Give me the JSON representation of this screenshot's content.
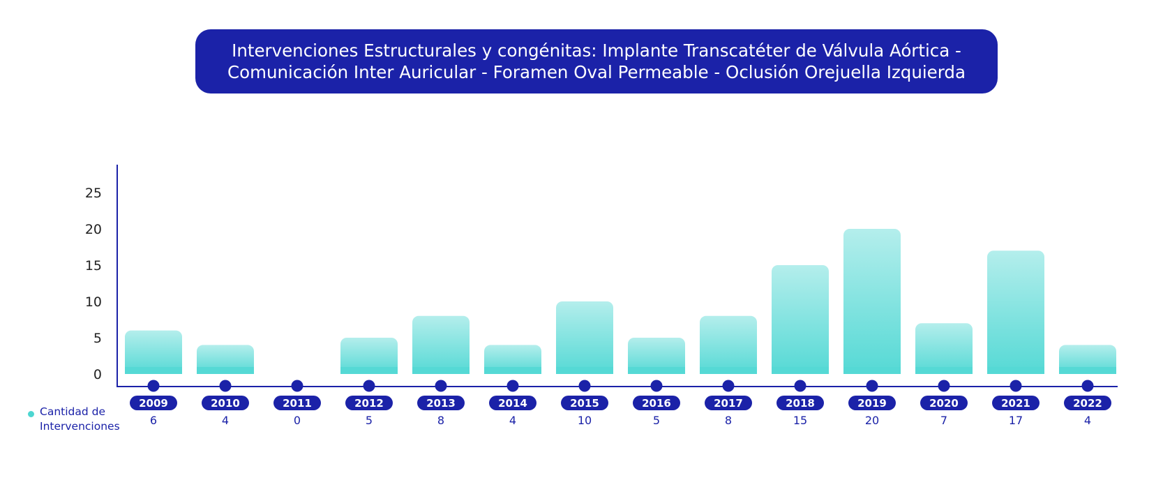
{
  "title": "Intervenciones Estructurales y congénitas: Implante Transcatéter de Válvula Aórtica - Comunicación Inter Auricular - Foramen Oval Permeable - Oclusión Orejuella Izquierda",
  "colors": {
    "accent": "#1b22a8",
    "bar_top": "#b4eeec",
    "bar_bottom": "#55d9d5",
    "legend_dot": "#4dd6d1",
    "tick_text": "#222222"
  },
  "legend": {
    "label": "Cantidad de Intervenciones"
  },
  "chart_data": {
    "type": "bar",
    "categories": [
      "2009",
      "2010",
      "2011",
      "2012",
      "2013",
      "2014",
      "2015",
      "2016",
      "2017",
      "2018",
      "2019",
      "2020",
      "2021",
      "2022"
    ],
    "series": [
      {
        "name": "Cantidad de Intervenciones",
        "values": [
          6,
          4,
          0,
          5,
          8,
          4,
          10,
          5,
          8,
          15,
          20,
          7,
          17,
          4
        ]
      }
    ],
    "y_ticks": [
      0,
      5,
      10,
      15,
      20,
      25
    ],
    "ylim": [
      0,
      28
    ],
    "grid": false,
    "legend_position": "bottom-left"
  }
}
